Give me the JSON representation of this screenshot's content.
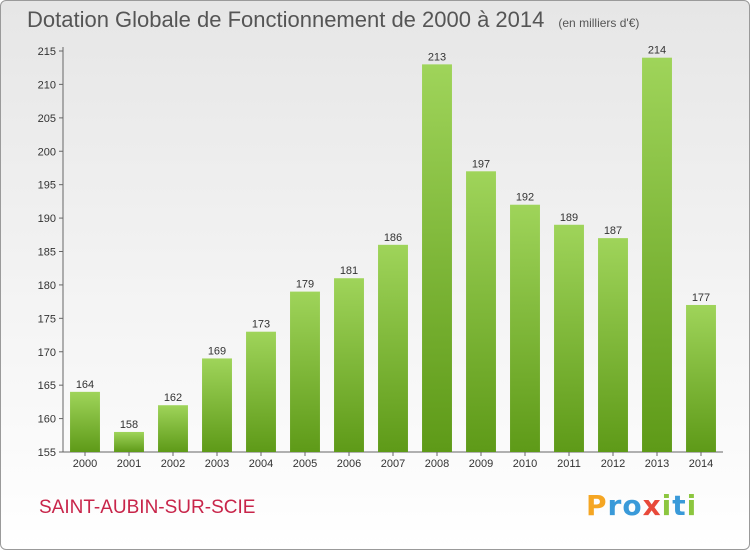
{
  "chart_data": {
    "type": "bar",
    "title": "Dotation Globale de Fonctionnement de 2000 à 2014",
    "subtitle": "(en milliers d'€)",
    "categories": [
      "2000",
      "2001",
      "2002",
      "2003",
      "2004",
      "2005",
      "2006",
      "2007",
      "2008",
      "2009",
      "2010",
      "2011",
      "2012",
      "2013",
      "2014"
    ],
    "values": [
      164,
      158,
      162,
      169,
      173,
      179,
      181,
      186,
      213,
      197,
      192,
      189,
      187,
      214,
      177
    ],
    "ylim": [
      155,
      215
    ],
    "yticks": [
      155,
      160,
      165,
      170,
      175,
      180,
      185,
      190,
      195,
      200,
      205,
      210,
      215
    ],
    "grid": false,
    "bar_color_top": "#9fd45a",
    "bar_color_bottom": "#5e9a18"
  },
  "commune": "SAINT-AUBIN-SUR-SCIE",
  "commune_color": "#c8254a",
  "logo": {
    "letters": [
      "P",
      "r",
      "o",
      "x",
      "i",
      "t",
      "i"
    ],
    "colors": [
      "#f5a623",
      "#3a9ad9",
      "#3a9ad9",
      "#e8493a",
      "#8cc63f",
      "#3a9ad9",
      "#8cc63f"
    ]
  }
}
